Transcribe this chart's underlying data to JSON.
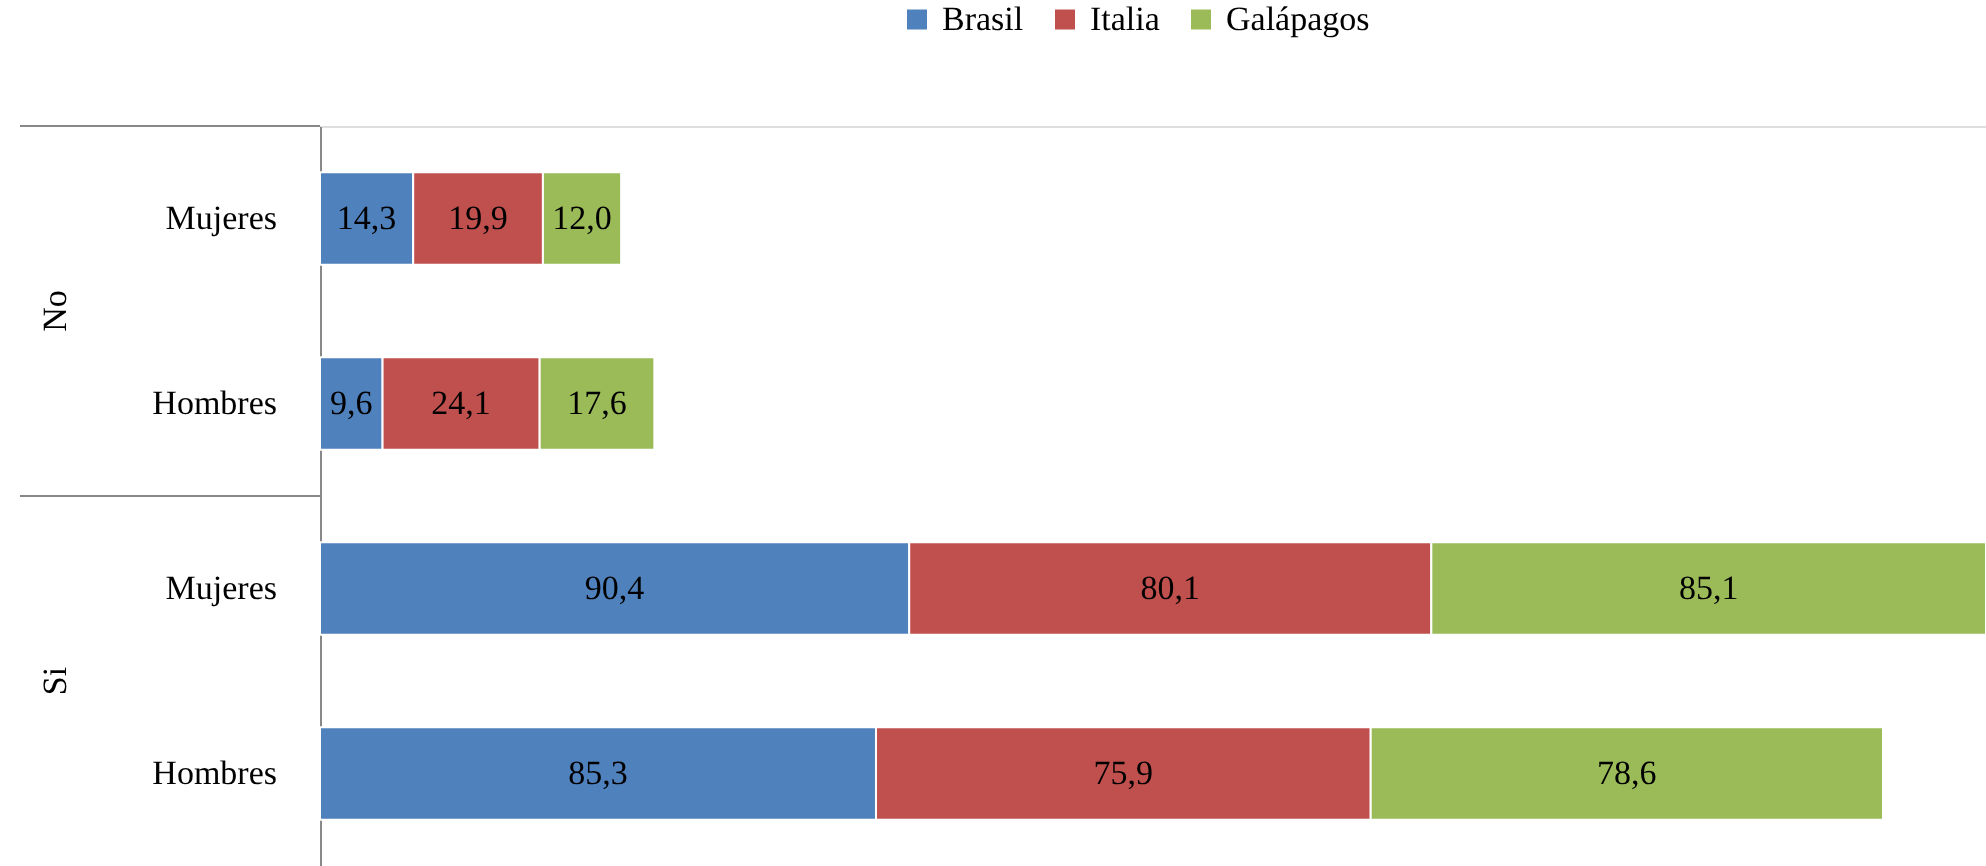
{
  "chart_data": {
    "type": "bar",
    "orientation": "horizontal",
    "stacked": true,
    "legend": "top",
    "categories": [
      "Mujeres",
      "Hombres",
      "Mujeres",
      "Hombres"
    ],
    "annotations": [
      "No",
      "Si"
    ],
    "series": [
      {
        "name": "Brasil",
        "color": "#4f81bd",
        "values": [
          14.3,
          9.6,
          90.4,
          85.3
        ],
        "value_labels": [
          "14,3",
          "9,6",
          "90,4",
          "85,3"
        ]
      },
      {
        "name": "Italia",
        "color": "#c0504d",
        "values": [
          19.9,
          24.1,
          80.1,
          75.9
        ],
        "value_labels": [
          "19,9",
          "24,1",
          "80,1",
          "75,9"
        ]
      },
      {
        "name": "Galápagos",
        "color": "#9bbb59",
        "values": [
          12.0,
          17.6,
          85.1,
          78.6
        ],
        "value_labels": [
          "12,0",
          "17,6",
          "85,1",
          "78,6"
        ]
      }
    ]
  }
}
